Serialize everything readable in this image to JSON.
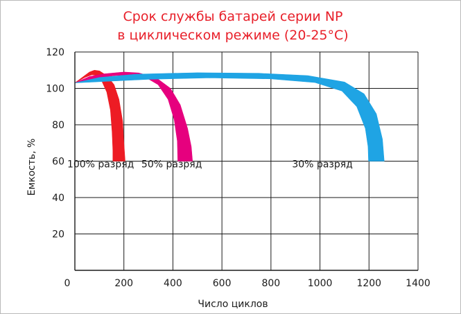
{
  "chart_data": {
    "type": "area",
    "title": [
      "Срок службы батарей серии NP",
      "в циклическом режиме (20-25°С)"
    ],
    "xlabel": "Число циклов",
    "ylabel": "Емкость, %",
    "xlim": [
      0,
      1400
    ],
    "ylim": [
      0,
      120
    ],
    "x_ticks": [
      0,
      200,
      400,
      600,
      800,
      1000,
      1200,
      1400
    ],
    "y_ticks": [
      20,
      40,
      60,
      80,
      100,
      120
    ],
    "x_tick_labels": [
      "0",
      "200",
      "400",
      "600",
      "800",
      "1000",
      "1200",
      "1400"
    ],
    "y_tick_labels": [
      "20",
      "40",
      "60",
      "80",
      "100",
      "120"
    ],
    "grid": true,
    "series": [
      {
        "name": "100% разряд",
        "color": "#ed1c24",
        "upper": [
          [
            0,
            103
          ],
          [
            30,
            106
          ],
          [
            60,
            109
          ],
          [
            80,
            110
          ],
          [
            100,
            109.6
          ],
          [
            130,
            107
          ],
          [
            160,
            102
          ],
          [
            180,
            94
          ],
          [
            195,
            82
          ],
          [
            200,
            70
          ],
          [
            205,
            60
          ]
        ],
        "lower": [
          [
            0,
            103
          ],
          [
            40,
            106
          ],
          [
            70,
            107.5
          ],
          [
            90,
            107
          ],
          [
            110,
            104
          ],
          [
            130,
            98
          ],
          [
            145,
            88
          ],
          [
            152,
            76
          ],
          [
            155,
            66
          ],
          [
            155,
            60
          ]
        ]
      },
      {
        "name": "50% разряд",
        "color": "#e6007e",
        "upper": [
          [
            0,
            103
          ],
          [
            60,
            106.5
          ],
          [
            120,
            108
          ],
          [
            200,
            109
          ],
          [
            260,
            108.5
          ],
          [
            330,
            106
          ],
          [
            390,
            100
          ],
          [
            430,
            91
          ],
          [
            460,
            78
          ],
          [
            475,
            68
          ],
          [
            480,
            60
          ]
        ],
        "lower": [
          [
            0,
            103
          ],
          [
            80,
            105.5
          ],
          [
            160,
            107
          ],
          [
            230,
            107.5
          ],
          [
            290,
            106
          ],
          [
            340,
            102
          ],
          [
            380,
            94
          ],
          [
            405,
            83
          ],
          [
            418,
            71
          ],
          [
            420,
            60
          ]
        ]
      },
      {
        "name": "30% разряд",
        "color": "#1fa4e4",
        "upper": [
          [
            0,
            103
          ],
          [
            100,
            106
          ],
          [
            250,
            107.8
          ],
          [
            500,
            108.6
          ],
          [
            750,
            108.3
          ],
          [
            950,
            107
          ],
          [
            1100,
            103.5
          ],
          [
            1180,
            97
          ],
          [
            1230,
            86
          ],
          [
            1255,
            72
          ],
          [
            1262,
            60
          ]
        ],
        "lower": [
          [
            0,
            103
          ],
          [
            150,
            104
          ],
          [
            300,
            105
          ],
          [
            550,
            105.8
          ],
          [
            800,
            105.2
          ],
          [
            980,
            103.2
          ],
          [
            1090,
            98.5
          ],
          [
            1150,
            90
          ],
          [
            1185,
            78
          ],
          [
            1196,
            68
          ],
          [
            1198,
            60
          ]
        ]
      }
    ],
    "annotations": [
      {
        "text": "100% разряд",
        "x": 105,
        "y": 56.5
      },
      {
        "text": "50% разряд",
        "x": 395,
        "y": 56.5
      },
      {
        "text": "30% разряд",
        "x": 1010,
        "y": 56.5
      }
    ]
  }
}
